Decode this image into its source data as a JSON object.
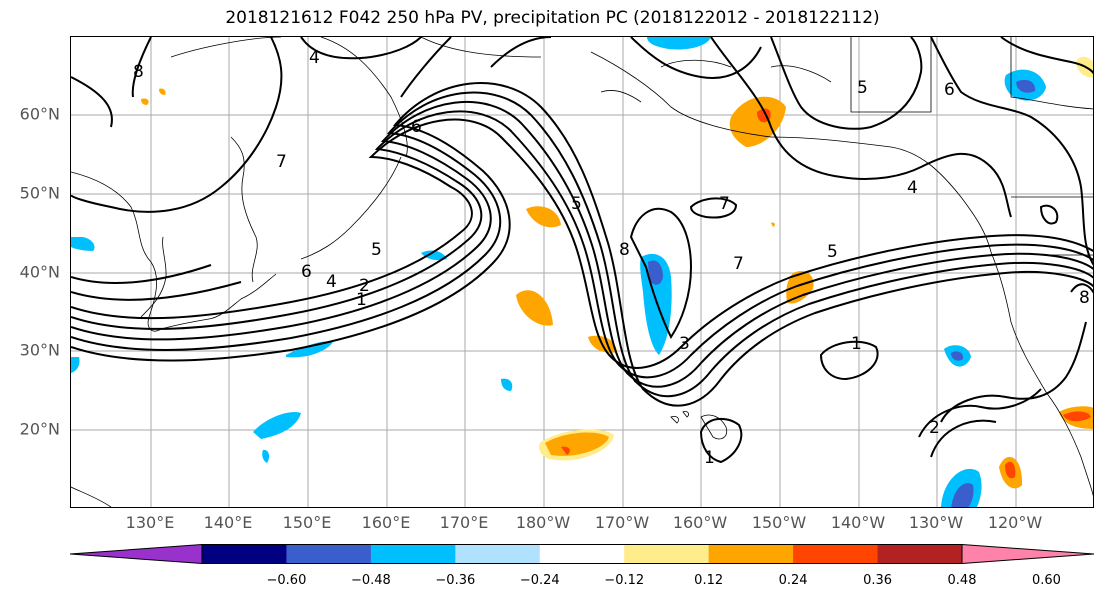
{
  "title": "2018121612 F042 250 hPa PV, precipitation PC (2018122012 - 2018122112)",
  "lat_labels": [
    "60°N",
    "50°N",
    "40°N",
    "30°N",
    "20°N"
  ],
  "lon_labels": [
    "130°E",
    "140°E",
    "150°E",
    "160°E",
    "170°E",
    "180°W",
    "170°W",
    "160°W",
    "150°W",
    "140°W",
    "130°W",
    "120°W"
  ],
  "colorbar": {
    "ticks": [
      "−0.60",
      "−0.48",
      "−0.36",
      "−0.24",
      "−0.12",
      "0.12",
      "0.24",
      "0.36",
      "0.48",
      "0.60"
    ],
    "colors": [
      "#9932cc",
      "#000080",
      "#3a5fcd",
      "#00bfff",
      "#b0e2ff",
      "#ffffff",
      "#ffec8b",
      "#ffa500",
      "#ff4500",
      "#b22222",
      "#ff82ab"
    ]
  },
  "contour_labels": [
    "8",
    "4",
    "7",
    "6",
    "5",
    "4",
    "2",
    "1",
    "6",
    "5",
    "8",
    "7",
    "7",
    "5",
    "3",
    "1",
    "2",
    "1",
    "5",
    "6",
    "4",
    "8"
  ]
}
